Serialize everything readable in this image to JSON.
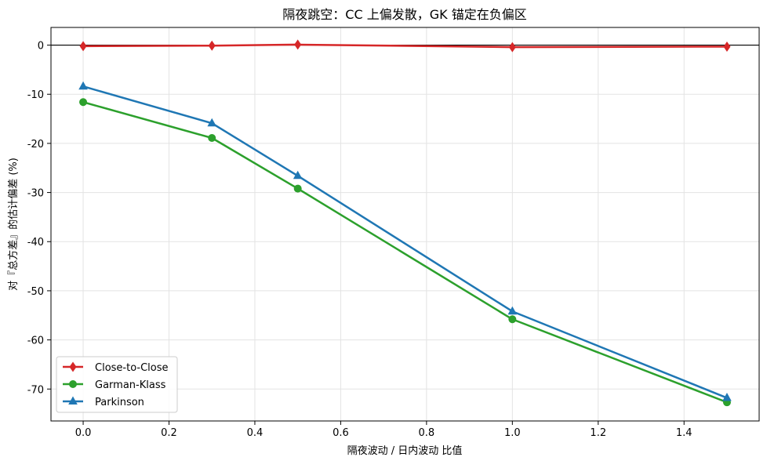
{
  "chart_data": {
    "type": "line",
    "title": "隔夜跳空：CC 上偏发散，GK 锚定在负偏区",
    "xlabel": "隔夜波动 / 日内波动 比值",
    "ylabel": "对『总方差』的估计偏差 (%)",
    "x": [
      0.0,
      0.3,
      0.5,
      1.0,
      1.5
    ],
    "xlim": [
      -0.075,
      1.575
    ],
    "ylim": [
      -76.5,
      3.6
    ],
    "xticks": [
      0.0,
      0.2,
      0.4,
      0.6,
      0.8,
      1.0,
      1.2,
      1.4
    ],
    "xtick_labels": [
      "0.0",
      "0.2",
      "0.4",
      "0.6",
      "0.8",
      "1.0",
      "1.2",
      "1.4"
    ],
    "yticks": [
      0,
      -10,
      -20,
      -30,
      -40,
      -50,
      -60,
      -70
    ],
    "ytick_labels": [
      "0",
      "-10",
      "-20",
      "-30",
      "-40",
      "-50",
      "-60",
      "-70"
    ],
    "grid": true,
    "reference_line": {
      "y": 0,
      "color": "#000000"
    },
    "legend_position": "lower-left",
    "series": [
      {
        "name": "Close-to-Close",
        "color": "#d62728",
        "marker": "diamond",
        "values": [
          -0.2,
          -0.1,
          0.1,
          -0.4,
          -0.3
        ]
      },
      {
        "name": "Garman-Klass",
        "color": "#2ca02c",
        "marker": "circle",
        "values": [
          -11.6,
          -18.9,
          -29.2,
          -55.8,
          -72.7
        ]
      },
      {
        "name": "Parkinson",
        "color": "#1f77b4",
        "marker": "triangle",
        "values": [
          -8.4,
          -15.9,
          -26.6,
          -54.2,
          -71.8
        ]
      }
    ]
  }
}
